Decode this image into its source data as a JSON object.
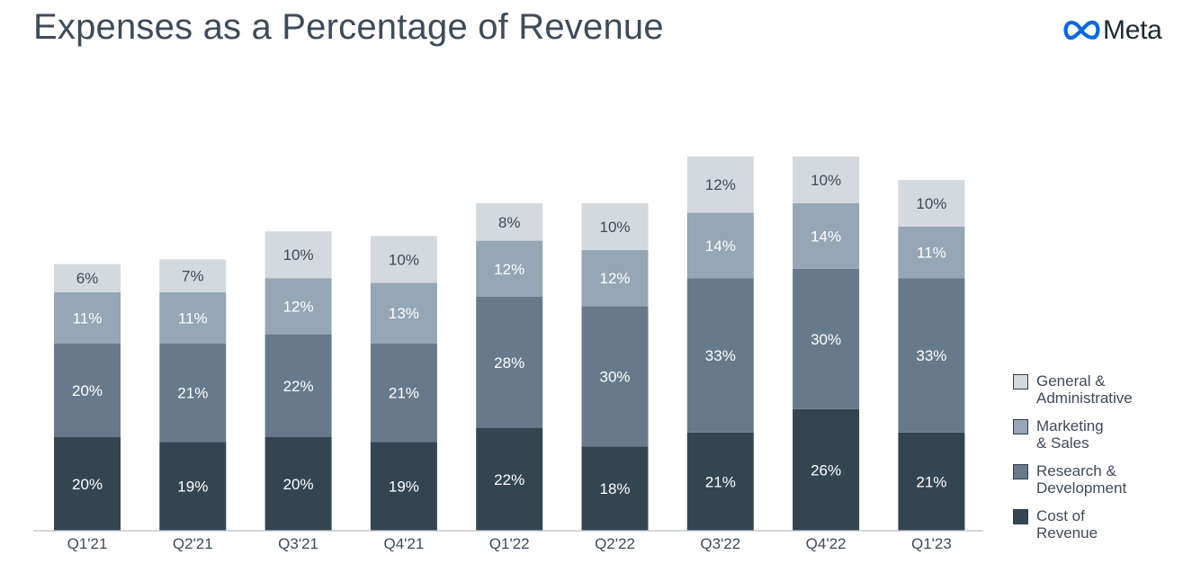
{
  "title": "Expenses as a Percentage of Revenue",
  "brand": {
    "name": "Meta",
    "logo_color": "#0668e1",
    "icon": "meta-infinity-icon"
  },
  "colors": {
    "general_administrative": "#d3d9de",
    "marketing_sales": "#95a6b4",
    "research_development": "#677a8b",
    "cost_of_revenue": "#344552",
    "label_dark": "#3f4a58",
    "label_light": "#ffffff"
  },
  "legend": [
    {
      "key": "general_administrative",
      "line1": "General &",
      "line2": "Administrative"
    },
    {
      "key": "marketing_sales",
      "line1": "Marketing",
      "line2": "& Sales"
    },
    {
      "key": "research_development",
      "line1": "Research &",
      "line2": "Development"
    },
    {
      "key": "cost_of_revenue",
      "line1": "Cost of",
      "line2": "Revenue"
    }
  ],
  "chart_data": {
    "type": "bar",
    "stacked": true,
    "title": "Expenses as a Percentage of Revenue",
    "xlabel": "",
    "ylabel": "",
    "unit": "%",
    "ylim": [
      0,
      80
    ],
    "grid": false,
    "legend_position": "bottom-right",
    "categories": [
      "Q1'21",
      "Q2'21",
      "Q3'21",
      "Q4'21",
      "Q1'22",
      "Q2'22",
      "Q3'22",
      "Q4'22",
      "Q1'23"
    ],
    "series": [
      {
        "name": "Cost of Revenue",
        "key": "cost_of_revenue",
        "values": [
          20,
          19,
          20,
          19,
          22,
          18,
          21,
          26,
          21
        ]
      },
      {
        "name": "Research & Development",
        "key": "research_development",
        "values": [
          20,
          21,
          22,
          21,
          28,
          30,
          33,
          30,
          33
        ]
      },
      {
        "name": "Marketing & Sales",
        "key": "marketing_sales",
        "values": [
          11,
          11,
          12,
          13,
          12,
          12,
          14,
          14,
          11
        ]
      },
      {
        "name": "General & Administrative",
        "key": "general_administrative",
        "values": [
          6,
          7,
          10,
          10,
          8,
          10,
          12,
          10,
          10
        ]
      }
    ]
  }
}
